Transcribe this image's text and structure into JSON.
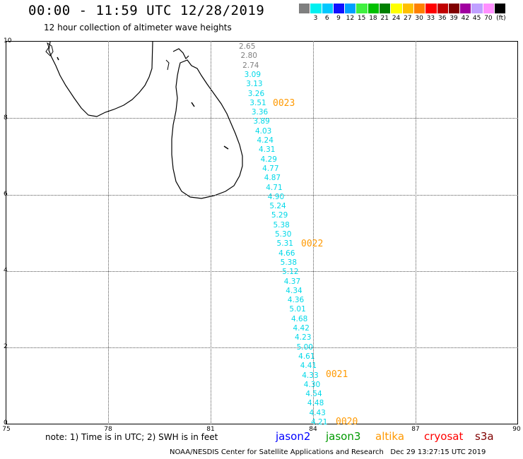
{
  "title": "00:00 - 11:59 UTC 12/28/2019",
  "subtitle": "12 hour collection of altimeter wave heights",
  "scale": {
    "colors": [
      "#7f7f7f",
      "#00f0f0",
      "#00c8ff",
      "#1010ff",
      "#00a0ff",
      "#40f040",
      "#00c000",
      "#008000",
      "#ffff00",
      "#ffc000",
      "#ff8000",
      "#ff0000",
      "#c00000",
      "#800000",
      "#a000a0",
      "#c0a0ff",
      "#ff90ff",
      "#000000"
    ],
    "labels": [
      "3",
      "6",
      "9",
      "12",
      "15",
      "18",
      "21",
      "24",
      "27",
      "30",
      "33",
      "36",
      "39",
      "42",
      "45",
      "70"
    ],
    "unit": "(ft)"
  },
  "axes": {
    "y_ticks": [
      "10",
      "8",
      "6",
      "4",
      "2",
      "0"
    ],
    "x_ticks": [
      "75",
      "78",
      "81",
      "84",
      "87",
      "90"
    ]
  },
  "track_values": [
    {
      "v": "2.65",
      "c": "gray"
    },
    {
      "v": "2.80",
      "c": "gray"
    },
    {
      "v": "2.74",
      "c": "gray"
    },
    {
      "v": "3.09"
    },
    {
      "v": "3.13"
    },
    {
      "v": "3.26"
    },
    {
      "v": "3.51"
    },
    {
      "v": "3.36"
    },
    {
      "v": "3.89"
    },
    {
      "v": "4.03"
    },
    {
      "v": "4.24"
    },
    {
      "v": "4.31"
    },
    {
      "v": "4.29"
    },
    {
      "v": "4.77"
    },
    {
      "v": "4.87"
    },
    {
      "v": "4.71"
    },
    {
      "v": "4.90"
    },
    {
      "v": "5.24"
    },
    {
      "v": "5.29"
    },
    {
      "v": "5.38"
    },
    {
      "v": "5.30"
    },
    {
      "v": "5.31"
    },
    {
      "v": "4.66"
    },
    {
      "v": "5.38"
    },
    {
      "v": "5.12"
    },
    {
      "v": "4.37"
    },
    {
      "v": "4.34"
    },
    {
      "v": "4.36"
    },
    {
      "v": "5.01"
    },
    {
      "v": "4.68"
    },
    {
      "v": "4.42"
    },
    {
      "v": "4.23"
    },
    {
      "v": "5.00"
    },
    {
      "v": "4.61"
    },
    {
      "v": "4.41"
    },
    {
      "v": "4.33"
    },
    {
      "v": "4.30"
    },
    {
      "v": "4.54"
    },
    {
      "v": "4.48"
    },
    {
      "v": "4.43"
    },
    {
      "v": "4.21"
    }
  ],
  "pass_labels": [
    "0023",
    "0022",
    "0021",
    "0020"
  ],
  "note": "note: 1) Time is in UTC; 2) SWH is in feet",
  "satellites": [
    {
      "name": "jason2",
      "color": "#0000ff"
    },
    {
      "name": "jason3",
      "color": "#009900"
    },
    {
      "name": "altika",
      "color": "#ff9900"
    },
    {
      "name": "cryosat",
      "color": "#ff0000"
    },
    {
      "name": "s3a",
      "color": "#800000"
    }
  ],
  "footer": "NOAA/NESDIS Center for Satellite Applications and Research   Dec 29 13:27:15 UTC 2019"
}
